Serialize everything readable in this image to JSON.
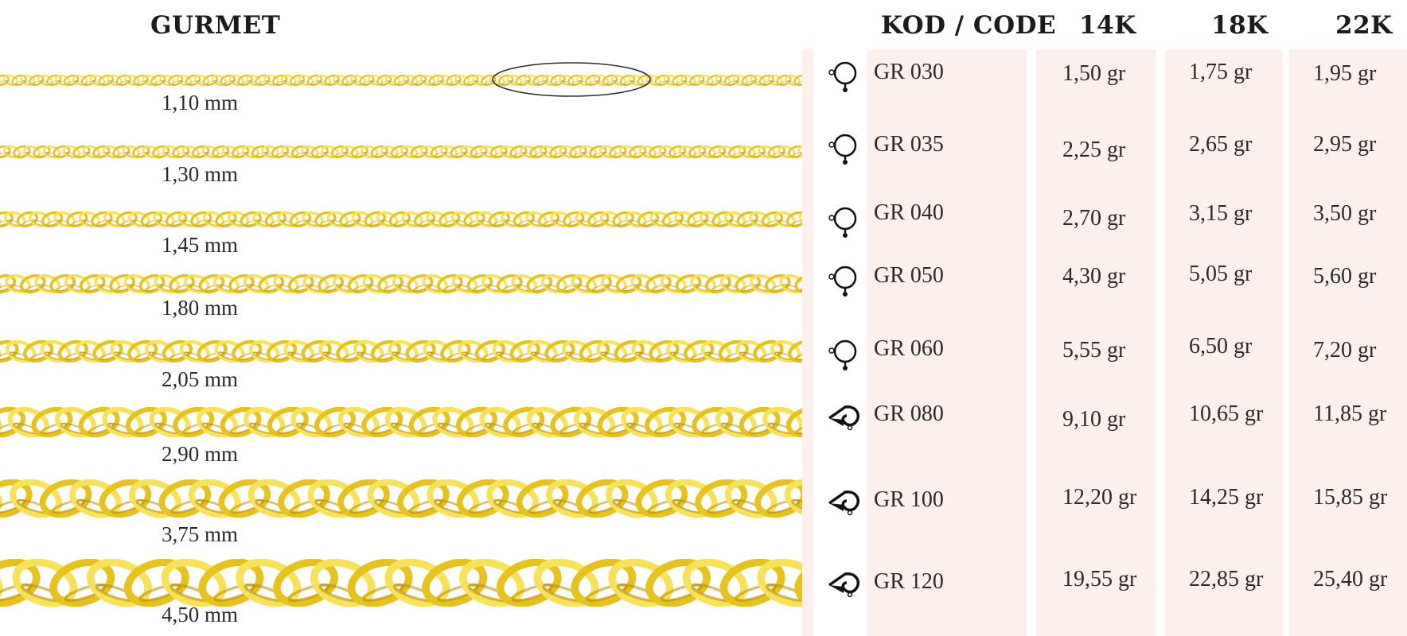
{
  "header": {
    "title": "GURMET",
    "code": "KOD / CODE",
    "k14": "14K",
    "k18": "18K",
    "k22": "22K"
  },
  "colors": {
    "gold_light": "#f7e25a",
    "gold": "#e8c21c",
    "gold_dark": "#b8870a",
    "band": "#fbf0eb"
  },
  "rows": [
    {
      "size": "1,10 mm",
      "code": "GR 030",
      "clasp": "spring-ring-clasp-icon",
      "w14": "1,50 gr",
      "w18": "1,75 gr",
      "w22": "1,95 gr"
    },
    {
      "size": "1,30 mm",
      "code": "GR 035",
      "clasp": "spring-ring-clasp-icon",
      "w14": "2,25 gr",
      "w18": "2,65 gr",
      "w22": "2,95 gr"
    },
    {
      "size": "1,45 mm",
      "code": "GR 040",
      "clasp": "spring-ring-clasp-icon",
      "w14": "2,70 gr",
      "w18": "3,15 gr",
      "w22": "3,50 gr"
    },
    {
      "size": "1,80 mm",
      "code": "GR 050",
      "clasp": "spring-ring-clasp-icon",
      "w14": "4,30 gr",
      "w18": "5,05 gr",
      "w22": "5,60 gr"
    },
    {
      "size": "2,05 mm",
      "code": "GR 060",
      "clasp": "spring-ring-clasp-icon",
      "w14": "5,55 gr",
      "w18": "6,50 gr",
      "w22": "7,20 gr"
    },
    {
      "size": "2,90 mm",
      "code": "GR 080",
      "clasp": "lobster-clasp-icon",
      "w14": "9,10 gr",
      "w18": "10,65 gr",
      "w22": "11,85 gr"
    },
    {
      "size": "3,75 mm",
      "code": "GR 100",
      "clasp": "lobster-clasp-icon",
      "w14": "12,20 gr",
      "w18": "14,25 gr",
      "w22": "15,85 gr"
    },
    {
      "size": "4,50 mm",
      "code": "GR 120",
      "clasp": "lobster-clasp-icon",
      "w14": "19,55 gr",
      "w18": "22,85 gr",
      "w22": "25,40 gr"
    }
  ]
}
